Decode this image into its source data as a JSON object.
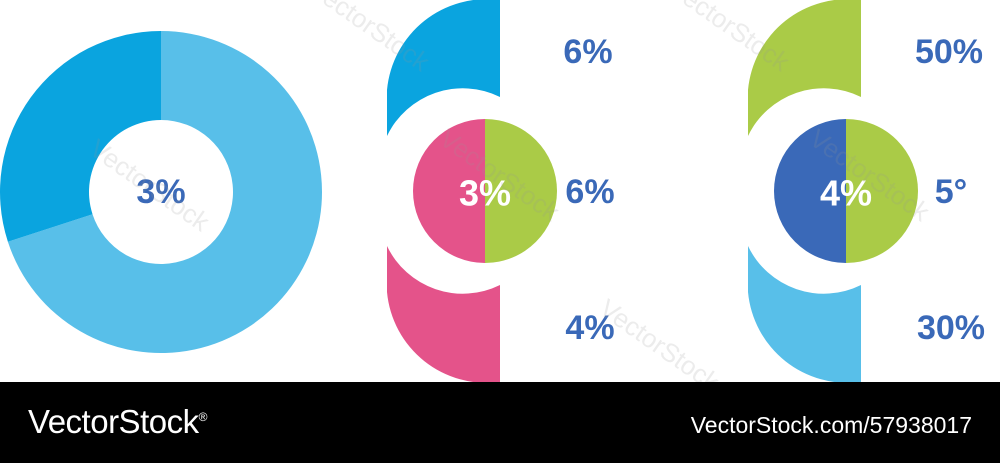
{
  "chart_data": [
    {
      "type": "pie",
      "variant": "donut",
      "center_label": "3%",
      "values": [
        70,
        30
      ],
      "colors": [
        "#58bfe9",
        "#0aa4df"
      ]
    },
    {
      "type": "pie",
      "variant": "split-circle-with-segments",
      "center_label": "3%",
      "labels": [
        "6%",
        "6%",
        "4%"
      ],
      "colors": {
        "top": "#0aa4df",
        "bottom": "#e4538a",
        "circle_left": "#e4538a",
        "circle_right": "#aacb47"
      }
    },
    {
      "type": "pie",
      "variant": "split-circle-with-segments",
      "center_label": "4%",
      "labels": [
        "50%",
        "5°",
        "30%"
      ],
      "colors": {
        "top": "#aacb47",
        "bottom": "#58bfe9",
        "circle_left": "#3a69b8",
        "circle_right": "#aacb47"
      }
    }
  ],
  "label_color": "#3a69b8",
  "watermark": "VectorStock",
  "footer": {
    "brand": "VectorStock",
    "brand_mark": "®",
    "image_id": "VectorStock.com/57938017"
  }
}
